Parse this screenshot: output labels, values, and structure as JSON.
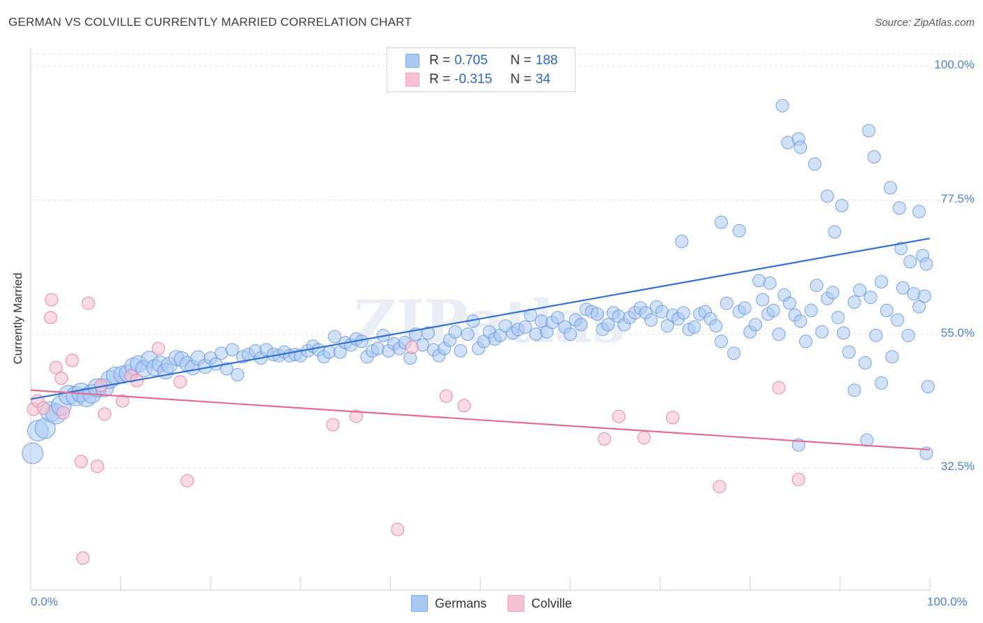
{
  "header": {
    "title": "GERMAN VS COLVILLE CURRENTLY MARRIED CORRELATION CHART",
    "source": "Source: ZipAtlas.com"
  },
  "legend": {
    "rows": [
      {
        "r_label": "R =",
        "r_value": "0.705",
        "n_label": "N =",
        "n_value": "188",
        "color": "#7aa9e8"
      },
      {
        "r_label": "R =",
        "r_value": "-0.315",
        "n_label": "N =",
        "n_value": "34",
        "color": "#f0a0bb"
      }
    ]
  },
  "bottom_legend": {
    "items": [
      {
        "label": "Germans",
        "color": "#a9c8f2"
      },
      {
        "label": "Colville",
        "color": "#f7c1d2"
      }
    ]
  },
  "watermark": "ZIPatlas",
  "chart_data": {
    "type": "scatter",
    "title": "GERMAN VS COLVILLE CURRENTLY MARRIED CORRELATION CHART",
    "xlabel": "",
    "ylabel": "Currently Married",
    "xlim": [
      0,
      100
    ],
    "ylim": [
      12,
      102
    ],
    "y_ticks": [
      32.5,
      55.0,
      77.5,
      100.0
    ],
    "y_tick_labels": [
      "32.5%",
      "55.0%",
      "77.5%",
      "100.0%"
    ],
    "x_tick_labels": [
      "0.0%",
      "100.0%"
    ],
    "grid": true,
    "legend_position": "top-center",
    "series": [
      {
        "name": "Germans",
        "color": "#5b8fdc",
        "fill": "#a9c8f2",
        "trend": {
          "x": [
            0,
            100
          ],
          "y": [
            44.1,
            71.1
          ]
        },
        "points": [
          [
            0.2,
            35.0
          ],
          [
            0.8,
            38.8
          ],
          [
            1.6,
            39.2
          ],
          [
            2.2,
            42.0
          ],
          [
            2.8,
            41.6
          ],
          [
            3.4,
            43.0
          ],
          [
            4.2,
            44.8
          ],
          [
            5.0,
            44.6
          ],
          [
            5.6,
            45.2
          ],
          [
            6.2,
            44.4
          ],
          [
            6.8,
            45.0
          ],
          [
            7.4,
            46.0
          ],
          [
            8.2,
            46.0
          ],
          [
            8.8,
            47.4
          ],
          [
            9.4,
            48.0
          ],
          [
            10.2,
            48.2
          ],
          [
            10.8,
            48.4
          ],
          [
            11.4,
            49.6
          ],
          [
            12.0,
            50.0
          ],
          [
            12.6,
            49.2
          ],
          [
            13.2,
            50.8
          ],
          [
            13.8,
            49.4
          ],
          [
            14.4,
            50.0
          ],
          [
            15.0,
            48.8
          ],
          [
            15.4,
            49.8
          ],
          [
            16.2,
            51.0
          ],
          [
            16.8,
            50.8
          ],
          [
            17.4,
            50.0
          ],
          [
            18.0,
            49.4
          ],
          [
            18.6,
            51.0
          ],
          [
            19.4,
            49.6
          ],
          [
            20.0,
            51.0
          ],
          [
            20.6,
            50.0
          ],
          [
            21.2,
            51.8
          ],
          [
            21.8,
            49.2
          ],
          [
            22.4,
            52.4
          ],
          [
            23.0,
            48.2
          ],
          [
            23.6,
            51.2
          ],
          [
            24.2,
            51.6
          ],
          [
            25.0,
            52.2
          ],
          [
            25.6,
            51.0
          ],
          [
            26.2,
            52.4
          ],
          [
            27.0,
            51.6
          ],
          [
            27.6,
            51.4
          ],
          [
            28.2,
            52.0
          ],
          [
            28.8,
            51.4
          ],
          [
            29.4,
            51.6
          ],
          [
            30.0,
            51.4
          ],
          [
            30.8,
            52.2
          ],
          [
            31.4,
            53.0
          ],
          [
            32.0,
            52.4
          ],
          [
            32.6,
            51.2
          ],
          [
            33.2,
            52.0
          ],
          [
            33.8,
            54.6
          ],
          [
            34.4,
            52.0
          ],
          [
            35.0,
            53.6
          ],
          [
            35.6,
            53.2
          ],
          [
            36.2,
            54.2
          ],
          [
            36.8,
            53.8
          ],
          [
            37.4,
            51.2
          ],
          [
            38.0,
            52.2
          ],
          [
            38.6,
            52.6
          ],
          [
            39.2,
            54.8
          ],
          [
            39.8,
            52.2
          ],
          [
            40.4,
            53.4
          ],
          [
            41.0,
            52.6
          ],
          [
            41.6,
            53.6
          ],
          [
            42.2,
            51.0
          ],
          [
            42.8,
            55.0
          ],
          [
            43.6,
            53.2
          ],
          [
            44.2,
            55.2
          ],
          [
            44.8,
            52.4
          ],
          [
            45.4,
            51.4
          ],
          [
            46.0,
            52.6
          ],
          [
            46.6,
            54.0
          ],
          [
            47.2,
            55.4
          ],
          [
            47.8,
            52.2
          ],
          [
            48.6,
            55.0
          ],
          [
            49.2,
            57.2
          ],
          [
            49.8,
            52.6
          ],
          [
            50.4,
            53.8
          ],
          [
            51.0,
            55.4
          ],
          [
            51.6,
            54.2
          ],
          [
            52.2,
            54.8
          ],
          [
            52.8,
            56.4
          ],
          [
            53.6,
            55.2
          ],
          [
            54.2,
            55.8
          ],
          [
            55.0,
            56.2
          ],
          [
            55.6,
            58.2
          ],
          [
            56.2,
            55.0
          ],
          [
            56.8,
            57.2
          ],
          [
            57.4,
            55.4
          ],
          [
            58.0,
            57.0
          ],
          [
            58.6,
            57.8
          ],
          [
            59.4,
            56.2
          ],
          [
            60.0,
            55.0
          ],
          [
            60.6,
            57.4
          ],
          [
            61.2,
            56.6
          ],
          [
            61.8,
            59.2
          ],
          [
            62.4,
            58.8
          ],
          [
            63.0,
            58.4
          ],
          [
            63.6,
            55.8
          ],
          [
            64.2,
            56.6
          ],
          [
            64.8,
            58.6
          ],
          [
            65.4,
            58.0
          ],
          [
            66.0,
            56.6
          ],
          [
            66.6,
            57.8
          ],
          [
            67.2,
            58.6
          ],
          [
            67.8,
            59.4
          ],
          [
            68.4,
            58.6
          ],
          [
            69.0,
            57.4
          ],
          [
            69.6,
            59.6
          ],
          [
            70.2,
            58.8
          ],
          [
            70.8,
            56.4
          ],
          [
            71.4,
            58.2
          ],
          [
            72.0,
            57.6
          ],
          [
            72.6,
            58.6
          ],
          [
            73.2,
            55.8
          ],
          [
            73.8,
            56.2
          ],
          [
            74.4,
            58.4
          ],
          [
            75.0,
            58.8
          ],
          [
            75.6,
            57.6
          ],
          [
            76.2,
            56.4
          ],
          [
            76.8,
            53.8
          ],
          [
            77.4,
            60.2
          ],
          [
            78.2,
            51.8
          ],
          [
            78.8,
            58.8
          ],
          [
            79.4,
            59.4
          ],
          [
            80.0,
            55.4
          ],
          [
            80.6,
            56.6
          ],
          [
            81.4,
            60.8
          ],
          [
            82.0,
            58.4
          ],
          [
            82.6,
            59.0
          ],
          [
            83.2,
            55.0
          ],
          [
            83.8,
            61.6
          ],
          [
            84.4,
            60.2
          ],
          [
            85.0,
            58.2
          ],
          [
            85.6,
            57.2
          ],
          [
            86.2,
            53.8
          ],
          [
            86.8,
            59.0
          ],
          [
            87.4,
            63.2
          ],
          [
            88.0,
            55.4
          ],
          [
            88.6,
            61.0
          ],
          [
            89.2,
            62.0
          ],
          [
            89.8,
            57.8
          ],
          [
            90.4,
            55.2
          ],
          [
            91.0,
            52.0
          ],
          [
            91.6,
            60.4
          ],
          [
            92.2,
            62.4
          ],
          [
            92.8,
            50.2
          ],
          [
            93.4,
            61.2
          ],
          [
            94.0,
            54.8
          ],
          [
            94.6,
            63.8
          ],
          [
            95.2,
            59.0
          ],
          [
            95.8,
            51.2
          ],
          [
            96.4,
            57.4
          ],
          [
            97.0,
            62.8
          ],
          [
            97.6,
            54.8
          ],
          [
            98.2,
            61.8
          ],
          [
            98.8,
            59.6
          ],
          [
            99.4,
            61.4
          ],
          [
            99.6,
            35.0
          ],
          [
            99.8,
            46.2
          ],
          [
            72.4,
            70.6
          ],
          [
            76.8,
            73.8
          ],
          [
            78.8,
            72.4
          ],
          [
            83.6,
            93.4
          ],
          [
            84.2,
            87.2
          ],
          [
            85.4,
            87.8
          ],
          [
            85.6,
            86.4
          ],
          [
            87.2,
            83.6
          ],
          [
            88.6,
            78.2
          ],
          [
            89.4,
            72.2
          ],
          [
            90.2,
            76.6
          ],
          [
            93.2,
            89.2
          ],
          [
            93.8,
            84.8
          ],
          [
            95.6,
            79.6
          ],
          [
            96.6,
            76.2
          ],
          [
            98.8,
            75.6
          ],
          [
            99.2,
            68.2
          ],
          [
            99.6,
            66.8
          ],
          [
            82.2,
            63.6
          ],
          [
            81.0,
            64.0
          ],
          [
            85.4,
            36.4
          ],
          [
            91.6,
            45.6
          ],
          [
            93.0,
            37.2
          ],
          [
            94.6,
            46.8
          ],
          [
            96.8,
            69.4
          ],
          [
            97.8,
            67.2
          ]
        ]
      },
      {
        "name": "Colville",
        "color": "#e27095",
        "fill": "#f7c1d2",
        "trend": {
          "x": [
            0,
            100
          ],
          "y": [
            45.6,
            35.6
          ]
        },
        "points": [
          [
            0.3,
            42.4
          ],
          [
            0.8,
            43.8
          ],
          [
            1.4,
            42.6
          ],
          [
            2.2,
            57.8
          ],
          [
            2.3,
            60.8
          ],
          [
            2.8,
            49.4
          ],
          [
            3.4,
            47.6
          ],
          [
            3.6,
            41.8
          ],
          [
            4.6,
            50.6
          ],
          [
            5.6,
            33.6
          ],
          [
            5.8,
            17.4
          ],
          [
            6.4,
            60.2
          ],
          [
            7.4,
            32.8
          ],
          [
            7.8,
            46.4
          ],
          [
            8.2,
            41.6
          ],
          [
            10.2,
            43.8
          ],
          [
            11.2,
            48.0
          ],
          [
            11.8,
            47.2
          ],
          [
            14.2,
            52.6
          ],
          [
            16.6,
            47.0
          ],
          [
            17.4,
            30.4
          ],
          [
            33.6,
            39.8
          ],
          [
            36.2,
            41.2
          ],
          [
            40.8,
            22.2
          ],
          [
            42.4,
            52.8
          ],
          [
            46.2,
            44.6
          ],
          [
            48.2,
            43.0
          ],
          [
            63.8,
            37.4
          ],
          [
            65.4,
            41.2
          ],
          [
            68.2,
            37.6
          ],
          [
            71.4,
            41.0
          ],
          [
            76.6,
            29.4
          ],
          [
            83.2,
            46.0
          ],
          [
            85.4,
            30.6
          ]
        ]
      }
    ]
  }
}
